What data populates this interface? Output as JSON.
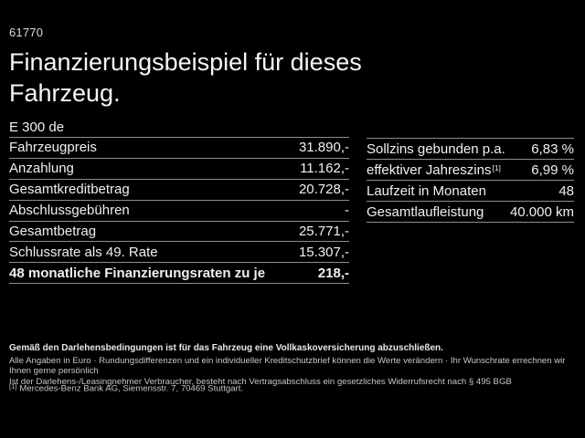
{
  "colors": {
    "background": "#000000",
    "text_primary": "#f0f0f0",
    "divider": "#8e8e8e",
    "footer_text": "#c7c7c7"
  },
  "header": {
    "listing_number": "61770",
    "title_line1": "Finanzierungsbeispiel für dieses",
    "title_line2": "Fahrzeug.",
    "model": "E 300 de"
  },
  "finance_table": {
    "rows": [
      {
        "label": "Fahrzeugpreis",
        "value": "31.890,-"
      },
      {
        "label": "Anzahlung",
        "value": "11.162,-"
      },
      {
        "label": "Gesamtkreditbetrag",
        "value": "20.728,-"
      },
      {
        "label": "Abschlussgebühren",
        "value": "-"
      },
      {
        "label": "Gesamtbetrag",
        "value": "25.771,-"
      },
      {
        "label": "Schlussrate als 49. Rate",
        "value": "15.307,-"
      },
      {
        "label": "48 monatliche Finanzierungsraten zu je",
        "value": "218,-"
      }
    ]
  },
  "conditions_table": {
    "rows": [
      {
        "label": "Sollzins gebunden p.a.",
        "sup": "",
        "value": "6,83 %"
      },
      {
        "label": "effektiver Jahreszins",
        "sup": "[1]",
        "value": "6,99 %"
      },
      {
        "label": "Laufzeit in Monaten",
        "sup": "",
        "value": "48"
      },
      {
        "label": "Gesamtlaufleistung",
        "sup": "",
        "value": "40.000 km"
      }
    ]
  },
  "footer": {
    "insurance_note": "Gemäß den Darlehensbedingungen ist für das Fahrzeug eine Vollkaskoversicherung abzuschließen.",
    "note_line1": "Alle Angaben in Euro · Rundungsdifferenzen und ein individueller Kreditschutzbrief können die Werte verändern · Ihr Wunschrate errechnen wir Ihnen gerne persönlich",
    "note_line2": "Ist der Darlehens-/Leasingnehmer Verbraucher, besteht nach Vertragsabschluss ein gesetzliches Widerrufsrecht nach § 495 BGB",
    "footnote_marker": "[1]",
    "footnote_text": "Mercedes-Benz Bank AG, Siemensstr. 7, 70469 Stuttgart."
  }
}
